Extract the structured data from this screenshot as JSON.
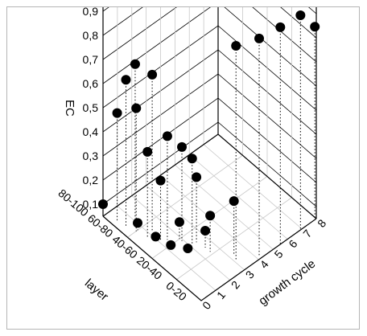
{
  "chart_data": {
    "type": "scatter",
    "subtype": "3d-scatter-with-droplines",
    "title": "",
    "xlabel": "growth cycle",
    "ylabel": "layer",
    "zlabel": "EC",
    "x_ticks": [
      "0",
      "1",
      "2",
      "3",
      "4",
      "5",
      "6",
      "7",
      "8"
    ],
    "y_ticks": [
      "0-20",
      "20-40",
      "40-60",
      "60-80",
      "80-100"
    ],
    "z_ticks": [
      "0,1",
      "0,2",
      "0,3",
      "0,4",
      "0,5",
      "0,6",
      "0,7",
      "0,8",
      "0,9"
    ],
    "xlim": [
      0,
      8
    ],
    "ylim": [
      0,
      4
    ],
    "zlim": [
      0.05,
      0.95
    ],
    "grid": true,
    "points": [
      {
        "x": 0.0,
        "y": 4.0,
        "z": 0.1
      },
      {
        "x": 0.3,
        "y": 3.6,
        "z": 0.5
      },
      {
        "x": 0.4,
        "y": 3.3,
        "z": 0.66
      },
      {
        "x": 0.7,
        "y": 3.1,
        "z": 0.73
      },
      {
        "x": 1.2,
        "y": 2.7,
        "z": 0.7
      },
      {
        "x": 0.6,
        "y": 3.0,
        "z": 0.56
      },
      {
        "x": 0.7,
        "y": 2.6,
        "z": 0.41
      },
      {
        "x": 1.4,
        "y": 2.2,
        "z": 0.48
      },
      {
        "x": 1.9,
        "y": 1.9,
        "z": 0.44
      },
      {
        "x": 2.1,
        "y": 1.6,
        "z": 0.41
      },
      {
        "x": 1.1,
        "y": 2.3,
        "z": 0.3
      },
      {
        "x": 2.4,
        "y": 1.6,
        "z": 0.32
      },
      {
        "x": 3.3,
        "y": 0.6,
        "z": 0.27
      },
      {
        "x": 0.7,
        "y": 3.0,
        "z": 0.08
      },
      {
        "x": 1.1,
        "y": 2.5,
        "z": 0.05
      },
      {
        "x": 1.9,
        "y": 2.0,
        "z": 0.12
      },
      {
        "x": 2.5,
        "y": 1.3,
        "z": 0.12
      },
      {
        "x": 2.5,
        "y": 1.1,
        "z": 0.2
      },
      {
        "x": 1.3,
        "y": 2.0,
        "z": 0.05
      },
      {
        "x": 1.8,
        "y": 1.6,
        "z": 0.05
      },
      {
        "x": 3.1,
        "y": 0.4,
        "z": 0.94
      },
      {
        "x": 4.2,
        "y": 0.1,
        "z": 0.95
      },
      {
        "x": 5.5,
        "y": 0.0,
        "z": 0.95
      },
      {
        "x": 6.9,
        "y": 0.0,
        "z": 0.94
      },
      {
        "x": 7.9,
        "y": 0.0,
        "z": 0.85
      }
    ]
  }
}
